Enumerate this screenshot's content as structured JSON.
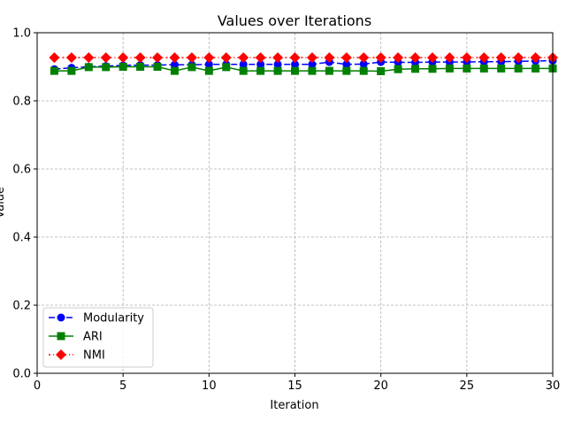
{
  "chart_data": {
    "type": "line",
    "title": "Values over Iterations",
    "xlabel": "Iteration",
    "ylabel": "Value",
    "xlim": [
      0,
      30
    ],
    "ylim": [
      0,
      1.0
    ],
    "xticks": [
      0,
      5,
      10,
      15,
      20,
      25,
      30
    ],
    "yticks": [
      0.0,
      0.2,
      0.4,
      0.6,
      0.8,
      1.0
    ],
    "grid": true,
    "legend_placement": "lower-left",
    "x": [
      1,
      2,
      3,
      4,
      5,
      6,
      7,
      8,
      9,
      10,
      11,
      12,
      13,
      14,
      15,
      16,
      17,
      18,
      19,
      20,
      21,
      22,
      23,
      24,
      25,
      26,
      27,
      28,
      29,
      30
    ],
    "series": [
      {
        "name": "Modularity",
        "color": "#0000ff",
        "marker": "circle",
        "linestyle": "dashed",
        "values": [
          0.893,
          0.897,
          0.9,
          0.902,
          0.904,
          0.905,
          0.905,
          0.906,
          0.906,
          0.907,
          0.907,
          0.907,
          0.907,
          0.907,
          0.907,
          0.907,
          0.914,
          0.907,
          0.908,
          0.914,
          0.913,
          0.913,
          0.914,
          0.914,
          0.914,
          0.915,
          0.915,
          0.916,
          0.917,
          0.918
        ]
      },
      {
        "name": "ARI",
        "color": "#008000",
        "marker": "square",
        "linestyle": "solid",
        "values": [
          0.888,
          0.888,
          0.899,
          0.899,
          0.9,
          0.9,
          0.9,
          0.888,
          0.899,
          0.888,
          0.899,
          0.888,
          0.888,
          0.888,
          0.888,
          0.888,
          0.888,
          0.888,
          0.888,
          0.887,
          0.893,
          0.894,
          0.894,
          0.895,
          0.895,
          0.895,
          0.895,
          0.895,
          0.895,
          0.895
        ]
      },
      {
        "name": "NMI",
        "color": "#ff0000",
        "marker": "diamond",
        "linestyle": "dotted",
        "values": [
          0.927,
          0.927,
          0.927,
          0.927,
          0.927,
          0.927,
          0.927,
          0.927,
          0.927,
          0.927,
          0.927,
          0.927,
          0.927,
          0.927,
          0.927,
          0.927,
          0.927,
          0.927,
          0.927,
          0.927,
          0.927,
          0.927,
          0.927,
          0.927,
          0.927,
          0.927,
          0.927,
          0.927,
          0.927,
          0.927
        ]
      }
    ]
  }
}
